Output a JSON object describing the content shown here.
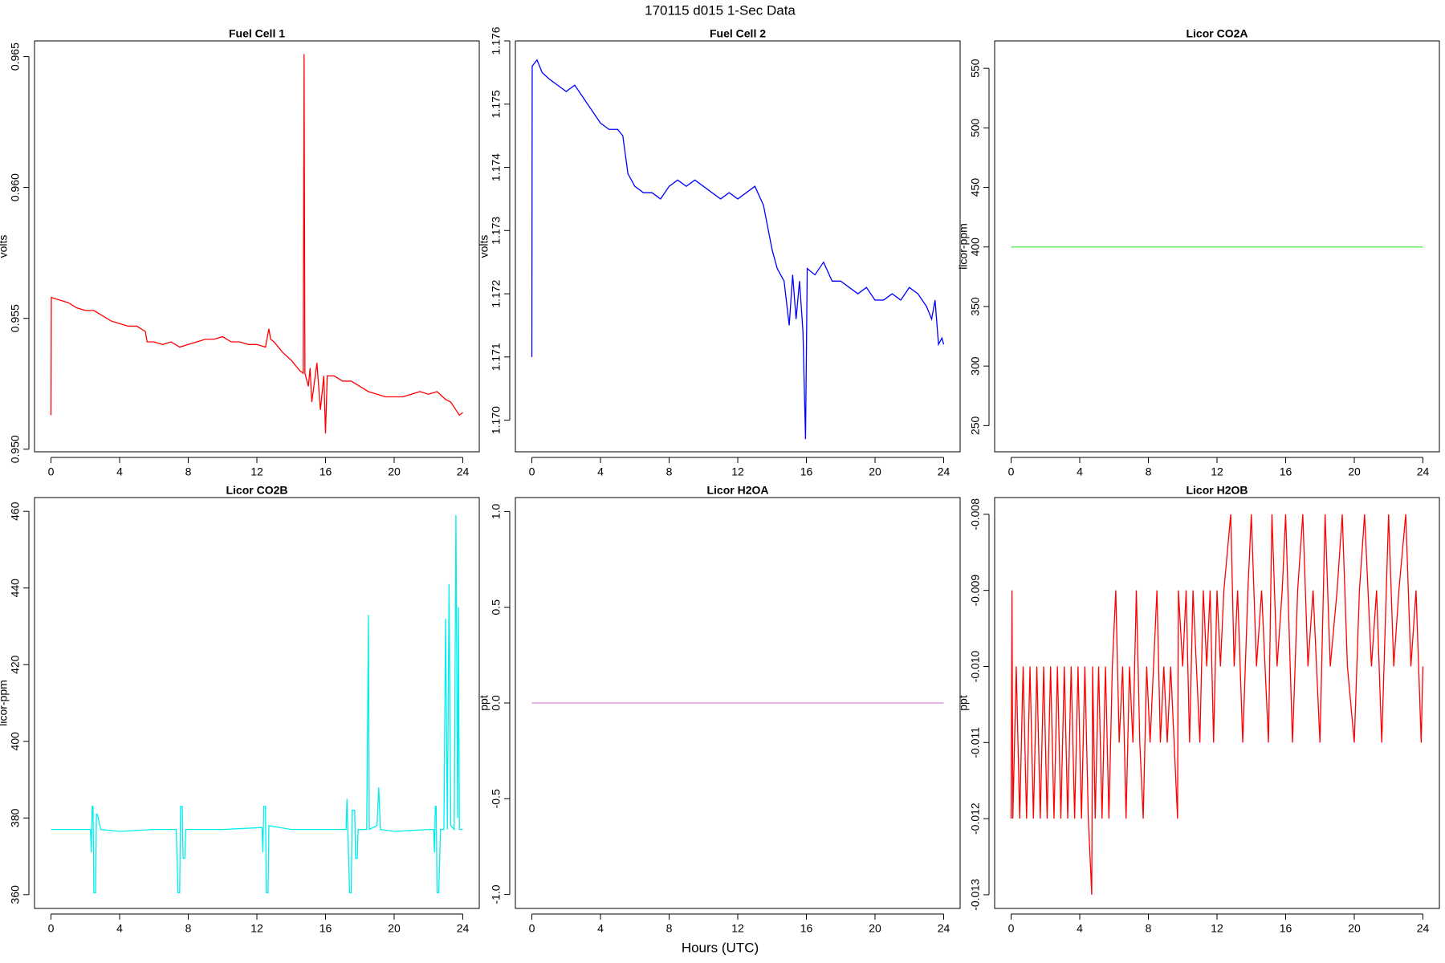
{
  "title": "170115   d015   1-Sec Data",
  "x_label": "Hours (UTC)",
  "chart_data": [
    {
      "type": "line",
      "title": "Fuel Cell 1",
      "y_label": "volts",
      "color": "#ff0000",
      "xlim": [
        -0.96,
        24.96
      ],
      "xticks": [
        0,
        4,
        8,
        12,
        16,
        20,
        24
      ],
      "ylim": [
        0.9499,
        0.9656
      ],
      "yticks": [
        {
          "value": 0.95,
          "label": "0.950"
        },
        0.955,
        {
          "value": 0.96,
          "label": "0.960"
        },
        0.965
      ],
      "x": [
        0,
        0.02,
        0.5,
        1,
        1.5,
        2,
        2.5,
        3,
        3.5,
        4,
        4.5,
        5,
        5.5,
        5.6,
        6,
        6.5,
        7,
        7.5,
        8,
        8.5,
        9,
        9.5,
        10,
        10.5,
        11,
        11.5,
        12,
        12.5,
        12.7,
        12.8,
        13,
        13.5,
        14,
        14.5,
        14.7,
        14.75,
        14.8,
        15,
        15.1,
        15.2,
        15.5,
        15.7,
        15.9,
        16,
        16.1,
        16.5,
        17,
        17.5,
        18,
        18.5,
        19,
        19.5,
        20,
        20.5,
        21,
        21.5,
        22,
        22.5,
        23,
        23.3,
        23.6,
        23.8,
        24
      ],
      "values": [
        0.9513,
        0.9558,
        0.9557,
        0.9556,
        0.9554,
        0.9553,
        0.9553,
        0.9551,
        0.9549,
        0.9548,
        0.9547,
        0.9547,
        0.9545,
        0.9541,
        0.9541,
        0.954,
        0.9541,
        0.9539,
        0.954,
        0.9541,
        0.9542,
        0.9542,
        0.9543,
        0.9541,
        0.9541,
        0.954,
        0.954,
        0.9539,
        0.9546,
        0.9542,
        0.9541,
        0.9537,
        0.9534,
        0.953,
        0.9529,
        0.9651,
        0.9529,
        0.9524,
        0.9531,
        0.9518,
        0.9533,
        0.9515,
        0.9528,
        0.9506,
        0.9528,
        0.9528,
        0.9526,
        0.9526,
        0.9524,
        0.9522,
        0.9521,
        0.952,
        0.952,
        0.952,
        0.9521,
        0.9522,
        0.9521,
        0.9522,
        0.9519,
        0.9518,
        0.9515,
        0.9513,
        0.9514
      ]
    },
    {
      "type": "line",
      "title": "Fuel Cell 2",
      "y_label": "volts",
      "color": "#0000ff",
      "xlim": [
        -0.96,
        24.96
      ],
      "xticks": [
        0,
        4,
        8,
        12,
        16,
        20,
        24
      ],
      "ylim": [
        1.1695,
        1.176
      ],
      "yticks": [
        {
          "value": 1.17,
          "label": "1.170"
        },
        1.171,
        1.172,
        1.173,
        1.174,
        1.175,
        1.176
      ],
      "x": [
        0,
        0.02,
        0.3,
        0.6,
        1,
        1.5,
        2,
        2.5,
        3,
        3.5,
        4,
        4.5,
        5,
        5.3,
        5.6,
        6,
        6.5,
        7,
        7.5,
        8,
        8.5,
        9,
        9.5,
        10,
        10.5,
        11,
        11.5,
        12,
        12.5,
        13,
        13.5,
        14,
        14.3,
        14.7,
        15,
        15.2,
        15.4,
        15.6,
        15.8,
        15.95,
        16.05,
        16.5,
        17,
        17.5,
        18,
        18.5,
        19,
        19.5,
        20,
        20.5,
        21,
        21.5,
        22,
        22.5,
        23,
        23.3,
        23.5,
        23.7,
        23.9,
        24
      ],
      "values": [
        1.171,
        1.1756,
        1.1757,
        1.1755,
        1.1754,
        1.1753,
        1.1752,
        1.1753,
        1.1751,
        1.1749,
        1.1747,
        1.1746,
        1.1746,
        1.1745,
        1.1739,
        1.1737,
        1.1736,
        1.1736,
        1.1735,
        1.1737,
        1.1738,
        1.1737,
        1.1738,
        1.1737,
        1.1736,
        1.1735,
        1.1736,
        1.1735,
        1.1736,
        1.1737,
        1.1734,
        1.1727,
        1.1724,
        1.1722,
        1.1715,
        1.1723,
        1.1716,
        1.1722,
        1.1714,
        1.1697,
        1.1724,
        1.1723,
        1.1725,
        1.1722,
        1.1722,
        1.1721,
        1.172,
        1.1721,
        1.1719,
        1.1719,
        1.172,
        1.1719,
        1.1721,
        1.172,
        1.1718,
        1.1716,
        1.1719,
        1.1712,
        1.1713,
        1.1712
      ]
    },
    {
      "type": "line",
      "title": "Licor CO2A",
      "y_label": "licor-ppm",
      "color": "#44ee44",
      "xlim": [
        -0.96,
        24.96
      ],
      "xticks": [
        0,
        4,
        8,
        12,
        16,
        20,
        24
      ],
      "ylim": [
        228,
        573
      ],
      "yticks": [
        250,
        300,
        350,
        400,
        450,
        500,
        550
      ],
      "x": [
        0,
        24
      ],
      "values": [
        400,
        400
      ]
    },
    {
      "type": "line",
      "title": "Licor CO2B",
      "y_label": "licor-ppm",
      "color": "#00eeee",
      "xlim": [
        -0.96,
        24.96
      ],
      "xticks": [
        0,
        4,
        8,
        12,
        16,
        20,
        24
      ],
      "ylim": [
        356.4,
        463.6
      ],
      "yticks": [
        360,
        380,
        400,
        420,
        440,
        460
      ],
      "x": [
        0,
        2.3,
        2.35,
        2.4,
        2.45,
        2.5,
        2.6,
        2.65,
        2.7,
        2.9,
        4,
        6,
        7.3,
        7.4,
        7.5,
        7.55,
        7.65,
        7.7,
        7.8,
        7.85,
        10,
        12.3,
        12.35,
        12.4,
        12.5,
        12.55,
        12.65,
        12.7,
        14,
        16,
        17.2,
        17.25,
        17.3,
        17.4,
        17.5,
        17.55,
        17.7,
        17.75,
        17.85,
        17.9,
        18.4,
        18.5,
        18.55,
        19,
        19.1,
        19.2,
        20,
        22,
        22.3,
        22.35,
        22.4,
        22.45,
        22.5,
        22.6,
        22.7,
        22.9,
        23,
        23.1,
        23.2,
        23.3,
        23.5,
        23.6,
        23.7,
        23.75,
        23.8,
        24
      ],
      "values": [
        377,
        377,
        371,
        383,
        383,
        360.5,
        360.5,
        381,
        381,
        377,
        376.5,
        377,
        377,
        360.5,
        360.5,
        383,
        383,
        369.5,
        369.5,
        377,
        377,
        377.5,
        371,
        383,
        383,
        360.5,
        360.5,
        378,
        377,
        377,
        377,
        385,
        377,
        360.5,
        360.5,
        382,
        382,
        369.5,
        369.5,
        377,
        377,
        433,
        377,
        378,
        388,
        377,
        376.5,
        377,
        377,
        371,
        383,
        383,
        360.5,
        360.5,
        377,
        377,
        432,
        377,
        441,
        378,
        377,
        459,
        380,
        435,
        377,
        377
      ]
    },
    {
      "type": "line",
      "title": "Licor H2OA",
      "y_label": "ppt",
      "color": "#dd88dd",
      "xlim": [
        -0.96,
        24.96
      ],
      "xticks": [
        0,
        4,
        8,
        12,
        16,
        20,
        24
      ],
      "ylim": [
        -1.073,
        1.073
      ],
      "yticks": [
        {
          "value": -1,
          "label": "-1.0"
        },
        -0.5,
        {
          "value": 0,
          "label": "0.0"
        },
        0.5,
        {
          "value": 1,
          "label": "1.0"
        }
      ],
      "x": [
        0,
        24
      ],
      "values": [
        0,
        0
      ]
    },
    {
      "type": "line",
      "title": "Licor H2OB",
      "y_label": "ppt",
      "color": "#ff0000",
      "xlim": [
        -0.96,
        24.96
      ],
      "xticks": [
        0,
        4,
        8,
        12,
        16,
        20,
        24
      ],
      "ylim": [
        -0.01318,
        -0.00778
      ],
      "yticks": [
        -0.013,
        -0.012,
        -0.011,
        {
          "value": -0.01,
          "label": "-0.010"
        },
        -0.009,
        -0.008
      ],
      "x": [
        0,
        0.05,
        0.1,
        0.3,
        0.5,
        0.7,
        0.9,
        1.1,
        1.3,
        1.5,
        1.7,
        1.9,
        2.1,
        2.3,
        2.5,
        2.7,
        2.9,
        3.1,
        3.3,
        3.5,
        3.7,
        3.9,
        4.1,
        4.3,
        4.5,
        4.7,
        4.75,
        4.9,
        5.1,
        5.3,
        5.5,
        5.7,
        5.9,
        6.1,
        6.3,
        6.5,
        6.7,
        6.9,
        7.1,
        7.3,
        7.5,
        7.7,
        7.9,
        8.1,
        8.3,
        8.5,
        8.7,
        8.9,
        9.1,
        9.3,
        9.5,
        9.7,
        9.75,
        10,
        10.2,
        10.4,
        10.6,
        10.8,
        11,
        11.2,
        11.4,
        11.6,
        11.8,
        12,
        12.2,
        12.4,
        12.8,
        13,
        13.2,
        13.5,
        13.8,
        14,
        14.3,
        14.6,
        15,
        15.2,
        15.5,
        15.8,
        16,
        16.4,
        16.7,
        17,
        17.3,
        17.6,
        18,
        18.3,
        18.6,
        19,
        19.3,
        19.6,
        20,
        20.3,
        20.6,
        21,
        21.3,
        21.6,
        22,
        22.3,
        22.6,
        23,
        23.3,
        23.6,
        23.9,
        24
      ],
      "values": [
        -0.012,
        -0.009,
        -0.012,
        -0.01,
        -0.012,
        -0.01,
        -0.012,
        -0.01,
        -0.012,
        -0.01,
        -0.012,
        -0.01,
        -0.012,
        -0.01,
        -0.012,
        -0.01,
        -0.012,
        -0.01,
        -0.012,
        -0.01,
        -0.012,
        -0.01,
        -0.012,
        -0.01,
        -0.012,
        -0.013,
        -0.01,
        -0.012,
        -0.01,
        -0.012,
        -0.01,
        -0.012,
        -0.01,
        -0.009,
        -0.011,
        -0.01,
        -0.012,
        -0.01,
        -0.011,
        -0.009,
        -0.011,
        -0.012,
        -0.01,
        -0.011,
        -0.01,
        -0.009,
        -0.011,
        -0.01,
        -0.011,
        -0.01,
        -0.011,
        -0.012,
        -0.009,
        -0.01,
        -0.009,
        -0.011,
        -0.009,
        -0.01,
        -0.011,
        -0.009,
        -0.01,
        -0.009,
        -0.011,
        -0.009,
        -0.01,
        -0.009,
        -0.008,
        -0.01,
        -0.009,
        -0.011,
        -0.009,
        -0.008,
        -0.01,
        -0.009,
        -0.011,
        -0.008,
        -0.01,
        -0.009,
        -0.008,
        -0.011,
        -0.009,
        -0.008,
        -0.01,
        -0.009,
        -0.011,
        -0.008,
        -0.01,
        -0.009,
        -0.008,
        -0.01,
        -0.011,
        -0.009,
        -0.008,
        -0.01,
        -0.009,
        -0.011,
        -0.008,
        -0.01,
        -0.009,
        -0.008,
        -0.01,
        -0.009,
        -0.011,
        -0.01
      ]
    }
  ]
}
